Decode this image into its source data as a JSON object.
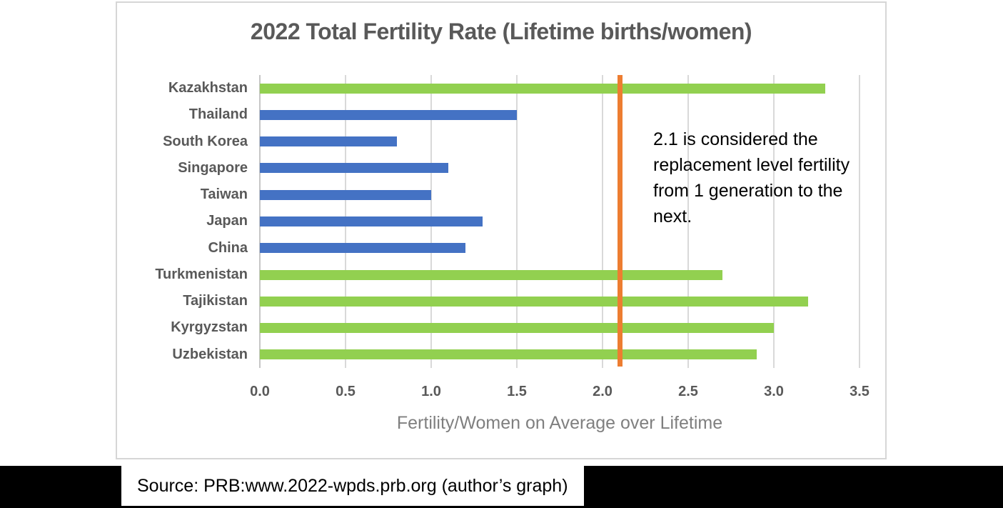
{
  "chart_data": {
    "type": "bar",
    "orientation": "horizontal",
    "title": "2022 Total Fertility Rate (Lifetime births/women)",
    "xlabel": "Fertility/Women on Average over Lifetime",
    "categories": [
      "Kazakhstan",
      "Thailand",
      "South Korea",
      "Singapore",
      "Taiwan",
      "Japan",
      "China",
      "Turkmenistan",
      "Tajikistan",
      "Kyrgyzstan",
      "Uzbekistan"
    ],
    "values": [
      3.3,
      1.5,
      0.8,
      1.1,
      1.0,
      1.3,
      1.2,
      2.7,
      3.2,
      3.0,
      2.9
    ],
    "bar_colors": [
      "green",
      "blue",
      "blue",
      "blue",
      "blue",
      "blue",
      "blue",
      "green",
      "green",
      "green",
      "green"
    ],
    "palette": {
      "green": "#92d050",
      "blue": "#4472c4"
    },
    "xlim": [
      0,
      3.5
    ],
    "xticks": [
      "0.0",
      "0.5",
      "1.0",
      "1.5",
      "2.0",
      "2.5",
      "3.0",
      "3.5"
    ],
    "grid": true,
    "gridline_color": "#d9d9d9",
    "reference_line": {
      "value": 2.1,
      "color": "#ed7d31",
      "label": "replacement level"
    },
    "annotation": "2.1 is considered the replacement level fertility from 1 generation to the next.",
    "title_color": "#595959",
    "label_color": "#595959",
    "axis_title_color": "#7f7f7f"
  },
  "source_bar": {
    "text": "Source: PRB:www.2022-wpds.prb.org (author’s graph)"
  }
}
